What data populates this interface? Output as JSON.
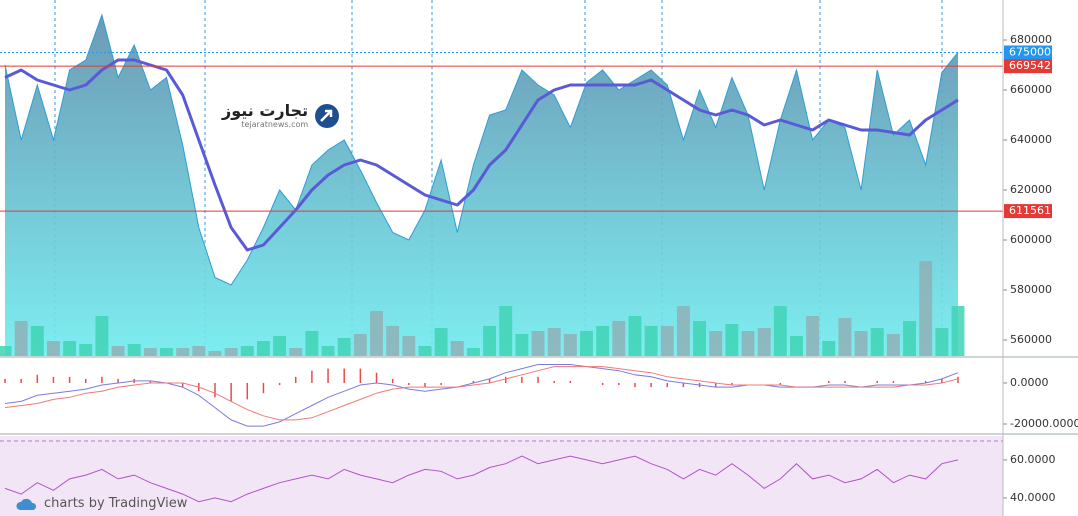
{
  "branding": {
    "logo_title": "تجارت نیوز",
    "logo_url": "tejaratnews.com",
    "footer": "charts by TradingView"
  },
  "chart_data": [
    {
      "type": "area",
      "ylim": [
        553600,
        696000
      ],
      "yticks": [
        560000,
        580000,
        600000,
        620000,
        640000,
        660000,
        680000
      ],
      "series": [
        {
          "color": "#2e9ed6",
          "fill": [
            "#5d8fae",
            "#6fecef"
          ],
          "values": [
            670000,
            640000,
            662000,
            640000,
            668000,
            672000,
            690000,
            665000,
            678000,
            660000,
            665000,
            638000,
            605000,
            585000,
            582000,
            592000,
            605000,
            620000,
            612000,
            630000,
            636000,
            640000,
            628000,
            615000,
            603000,
            600000,
            612000,
            632000,
            603000,
            630000,
            650000,
            652000,
            668000,
            662000,
            658000,
            645000,
            663000,
            668000,
            660000,
            664000,
            668000,
            662000,
            640000,
            660000,
            645000,
            665000,
            650000,
            620000,
            648000,
            668000,
            640000,
            648000,
            645000,
            620000,
            668000,
            642000,
            648000,
            630000,
            667000,
            675000
          ]
        },
        {
          "color": "#5a5ad6",
          "values": [
            665000,
            668000,
            664000,
            662000,
            660000,
            662000,
            668000,
            672000,
            672000,
            670000,
            668000,
            658000,
            640000,
            622000,
            605000,
            596000,
            598000,
            605000,
            612000,
            620000,
            626000,
            630000,
            632000,
            630000,
            626000,
            622000,
            618000,
            616000,
            614000,
            620000,
            630000,
            636000,
            646000,
            656000,
            660000,
            662000,
            662000,
            662000,
            662000,
            662000,
            664000,
            660000,
            656000,
            652000,
            650000,
            652000,
            650000,
            646000,
            648000,
            646000,
            644000,
            648000,
            646000,
            644000,
            644000,
            643000,
            642000,
            648000,
            652000,
            656000
          ]
        }
      ],
      "price_lines": [
        {
          "value": 675000,
          "color": "#2196f3",
          "style": "dotted"
        },
        {
          "value": 669542,
          "color": "#e53935",
          "style": "solid"
        },
        {
          "value": 611561,
          "color": "#e53935",
          "style": "solid"
        }
      ]
    },
    {
      "type": "bar",
      "ylim": [
        0,
        100
      ],
      "up_color": "#3fd3b4",
      "down_color": "#8fb0b6",
      "values": [
        10,
        35,
        30,
        15,
        15,
        12,
        40,
        10,
        12,
        8,
        8,
        8,
        10,
        5,
        8,
        10,
        15,
        20,
        8,
        25,
        10,
        18,
        22,
        45,
        30,
        20,
        10,
        28,
        15,
        8,
        30,
        50,
        22,
        25,
        28,
        22,
        25,
        30,
        35,
        40,
        30,
        30,
        50,
        35,
        25,
        32,
        25,
        28,
        50,
        20,
        40,
        15,
        38,
        25,
        28,
        22,
        35,
        95,
        28,
        50
      ]
    },
    {
      "type": "macd",
      "ylim": [
        -23900,
        11200
      ],
      "yticks": [
        {
          "value": 0,
          "label": "0.0000"
        },
        {
          "value": -20000,
          "label": "-20000.0000"
        }
      ],
      "series": [
        {
          "color": "#7b7bdc",
          "values": [
            -10000,
            -9000,
            -6000,
            -5000,
            -4000,
            -3000,
            -1000,
            0,
            1000,
            1000,
            0,
            -2000,
            -6000,
            -12000,
            -18000,
            -21000,
            -21000,
            -19000,
            -15000,
            -11000,
            -7000,
            -4000,
            -1000,
            0,
            -1000,
            -3000,
            -4000,
            -3000,
            -2000,
            0,
            2000,
            5000,
            7000,
            9000,
            9000,
            9000,
            8000,
            7000,
            6000,
            4000,
            3000,
            1000,
            0,
            -1000,
            -2000,
            -2000,
            -1000,
            -1000,
            -2000,
            -2000,
            -2000,
            -1000,
            -1000,
            -2000,
            -1000,
            -1000,
            -1000,
            0,
            2000,
            5000
          ]
        },
        {
          "color": "#f07a7a",
          "values": [
            -12000,
            -11000,
            -10000,
            -8000,
            -7000,
            -5000,
            -4000,
            -2000,
            -1000,
            0,
            0,
            0,
            -2000,
            -5000,
            -9000,
            -13000,
            -16000,
            -18000,
            -18000,
            -17000,
            -14000,
            -11000,
            -8000,
            -5000,
            -3000,
            -2000,
            -2000,
            -2000,
            -2000,
            -1000,
            0,
            2000,
            4000,
            6000,
            8000,
            8000,
            8000,
            8000,
            7000,
            6000,
            5000,
            3000,
            2000,
            1000,
            0,
            -1000,
            -1000,
            -1000,
            -1000,
            -2000,
            -2000,
            -2000,
            -2000,
            -2000,
            -2000,
            -2000,
            -1000,
            -1000,
            0,
            2000
          ]
        }
      ],
      "histogram": {
        "color": "#e84b4b",
        "values": [
          2000,
          2000,
          4000,
          3000,
          3000,
          2000,
          3000,
          2000,
          2000,
          1000,
          0,
          -2000,
          -4000,
          -7000,
          -9000,
          -8000,
          -5000,
          -1000,
          3000,
          6000,
          7000,
          7000,
          7000,
          5000,
          2000,
          -1000,
          -2000,
          -1000,
          0,
          1000,
          2000,
          3000,
          3000,
          3000,
          1000,
          1000,
          0,
          -1000,
          -1000,
          -2000,
          -2000,
          -2000,
          -2000,
          -2000,
          -2000,
          -1000,
          0,
          0,
          -1000,
          0,
          0,
          1000,
          1000,
          0,
          1000,
          1000,
          0,
          1000,
          2000,
          3000
        ]
      }
    },
    {
      "type": "line",
      "ylim": [
        30.5,
        72.6
      ],
      "yticks": [
        {
          "value": 60,
          "label": "60.0000"
        },
        {
          "value": 40,
          "label": "40.0000"
        }
      ],
      "background": "#f2e6f6",
      "band_lines": [
        70
      ],
      "series": [
        {
          "color": "#b452c8",
          "values": [
            45,
            42,
            48,
            44,
            50,
            52,
            55,
            50,
            52,
            48,
            45,
            42,
            38,
            40,
            38,
            42,
            45,
            48,
            50,
            52,
            50,
            55,
            52,
            50,
            48,
            52,
            55,
            54,
            50,
            52,
            56,
            58,
            62,
            58,
            60,
            62,
            60,
            58,
            60,
            62,
            58,
            55,
            50,
            55,
            52,
            58,
            52,
            45,
            50,
            58,
            50,
            52,
            48,
            50,
            55,
            48,
            52,
            50,
            58,
            60
          ]
        }
      ]
    }
  ]
}
